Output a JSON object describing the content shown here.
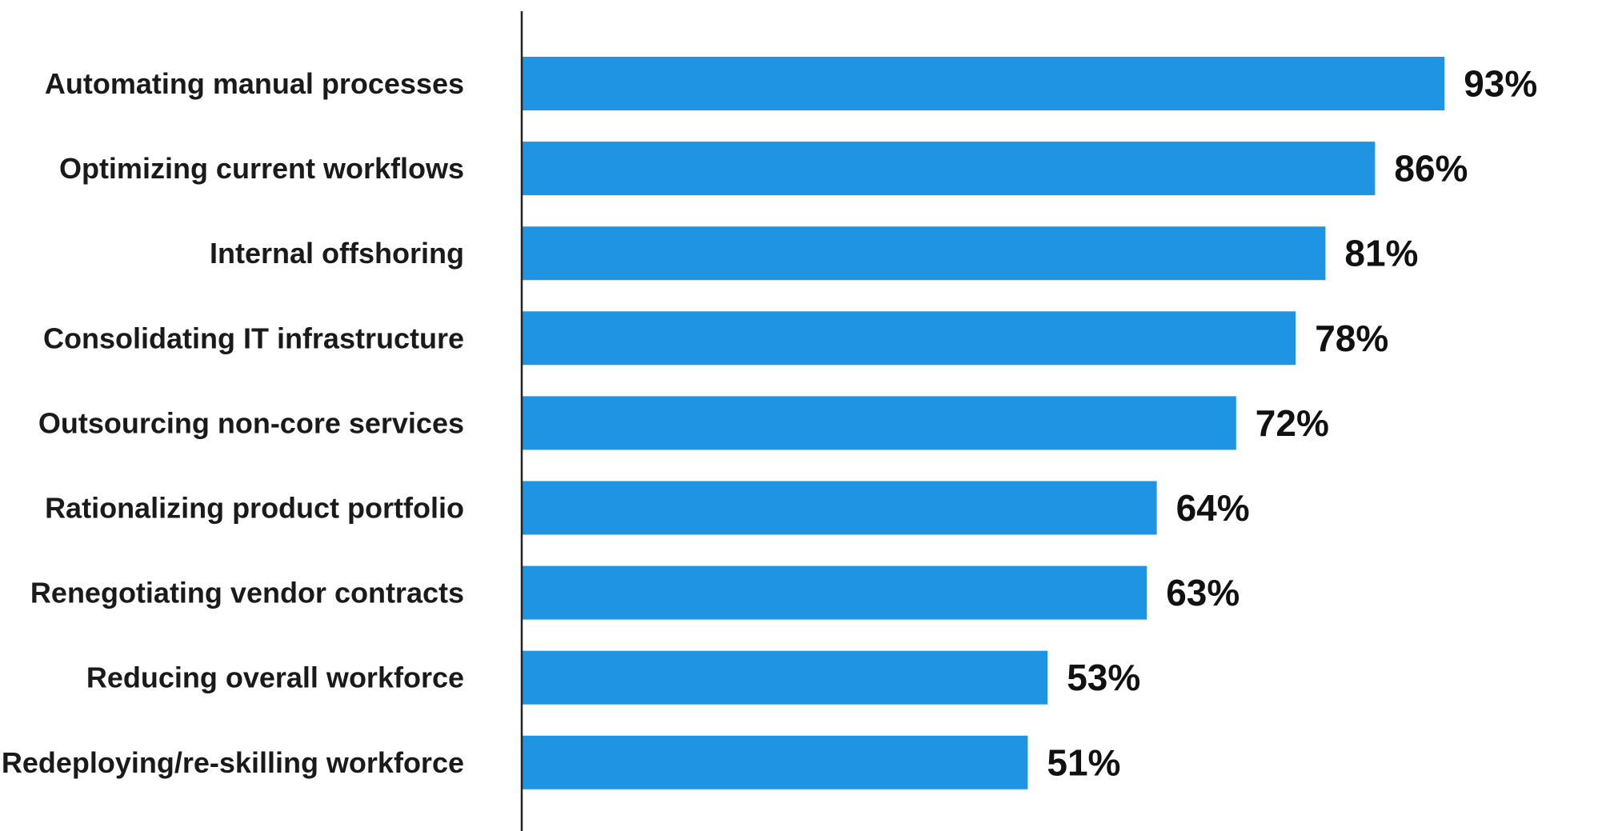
{
  "chart_data": {
    "type": "bar",
    "orientation": "horizontal",
    "title": "",
    "xlabel": "",
    "ylabel": "",
    "categories": [
      "Automating manual processes",
      "Optimizing current workflows",
      "Internal offshoring",
      "Consolidating IT infrastructure",
      "Outsourcing non-core services",
      "Rationalizing product portfolio",
      "Renegotiating vendor contracts",
      "Reducing overall workforce",
      "Redeploying/re-skilling workforce"
    ],
    "values": [
      93,
      86,
      81,
      78,
      72,
      64,
      63,
      53,
      51
    ],
    "value_labels": [
      "93%",
      "86%",
      "81%",
      "78%",
      "72%",
      "64%",
      "63%",
      "53%",
      "51%"
    ],
    "unit": "%",
    "xlim": [
      0,
      100
    ],
    "grid": false,
    "legend": "none",
    "colors": {
      "bar": "#1E94E3",
      "axis": "#222222",
      "text": "#111111"
    }
  }
}
